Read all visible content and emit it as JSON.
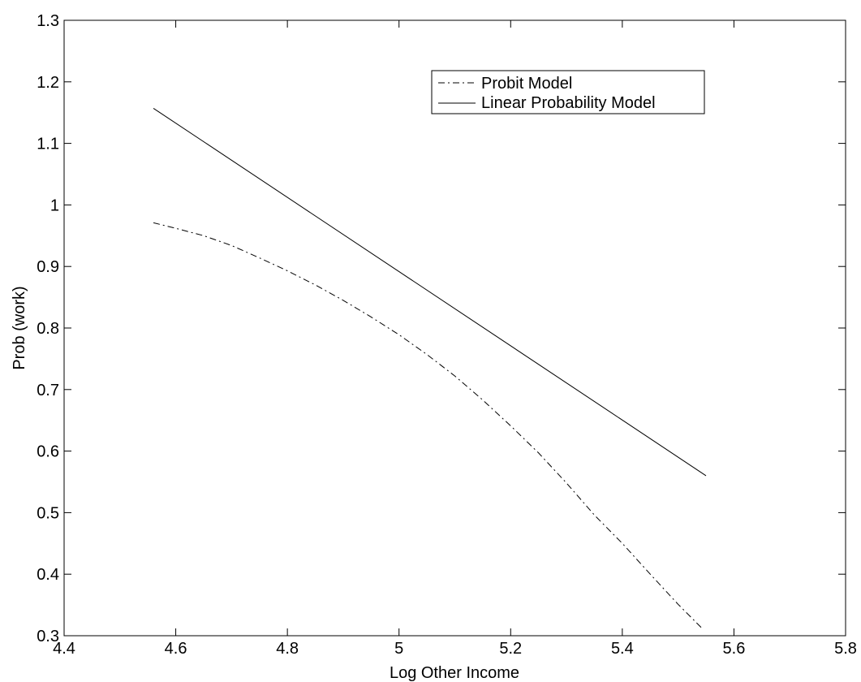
{
  "chart_data": {
    "type": "line",
    "title": "",
    "xlabel": "Log Other Income",
    "ylabel": "Prob (work)",
    "xlim": [
      4.4,
      5.8
    ],
    "ylim": [
      0.3,
      1.3
    ],
    "xticks": [
      "4.4",
      "4.6",
      "4.8",
      "5",
      "5.2",
      "5.4",
      "5.6",
      "5.8"
    ],
    "yticks": [
      "0.3",
      "0.4",
      "0.5",
      "0.6",
      "0.7",
      "0.8",
      "0.9",
      "1",
      "1.1",
      "1.2",
      "1.3"
    ],
    "grid": false,
    "legend_position": "top-right",
    "series": [
      {
        "name": "Probit Model",
        "style": "dash-dot",
        "color": "#000000",
        "x": [
          4.56,
          4.6,
          4.65,
          4.7,
          4.75,
          4.8,
          4.85,
          4.9,
          4.95,
          5.0,
          5.05,
          5.1,
          5.15,
          5.2,
          5.25,
          5.3,
          5.35,
          5.4,
          5.45,
          5.5,
          5.545
        ],
        "y": [
          0.971,
          0.962,
          0.95,
          0.934,
          0.914,
          0.893,
          0.87,
          0.845,
          0.818,
          0.789,
          0.757,
          0.722,
          0.683,
          0.641,
          0.597,
          0.548,
          0.496,
          0.45,
          0.4,
          0.351,
          0.31
        ]
      },
      {
        "name": "Linear Probability Model",
        "style": "solid",
        "color": "#000000",
        "x": [
          4.56,
          5.55
        ],
        "y": [
          1.157,
          0.56
        ]
      }
    ]
  }
}
